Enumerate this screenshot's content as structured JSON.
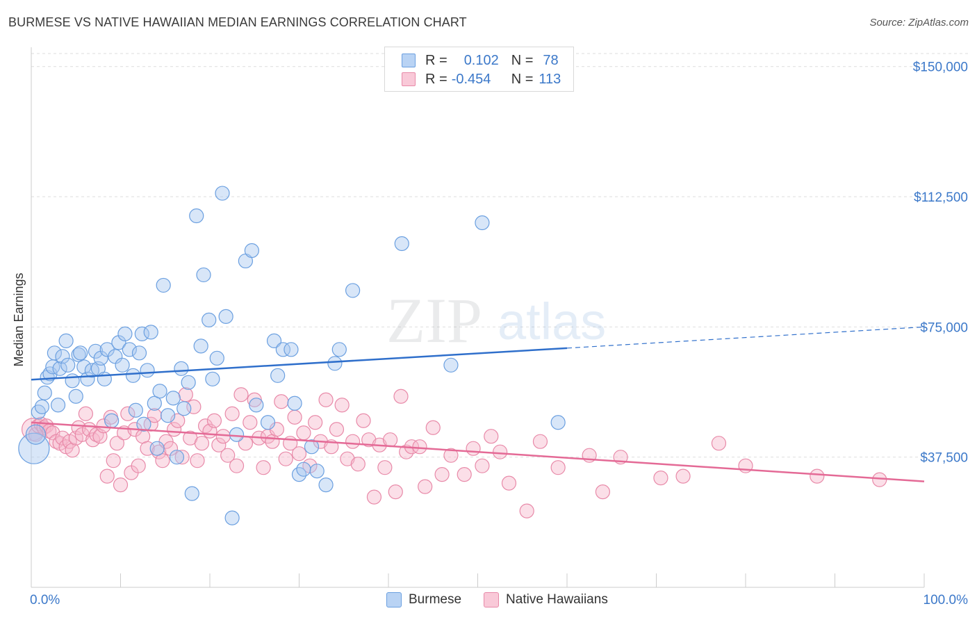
{
  "header": {
    "title": "BURMESE VS NATIVE HAWAIIAN MEDIAN EARNINGS CORRELATION CHART",
    "source": "Source: ZipAtlas.com"
  },
  "watermark": {
    "left": "ZIP",
    "right": "atlas"
  },
  "legend_top": [
    {
      "r_label": "R =",
      "r_value": "0.102",
      "n_label": "N =",
      "n_value": "78"
    },
    {
      "r_label": "R =",
      "r_value": "-0.454",
      "n_label": "N =",
      "n_value": "113"
    }
  ],
  "legend_bottom": [
    {
      "label": "Burmese"
    },
    {
      "label": "Native Hawaiians"
    }
  ],
  "colors": {
    "burmese_fill": "#a8c8f0",
    "burmese_stroke": "#6a9fe0",
    "burmese_line": "#2f6fcb",
    "hawaiian_fill": "#f7b8cc",
    "hawaiian_stroke": "#e889a8",
    "hawaiian_line": "#e46a96",
    "axis_label": "#3b78c9",
    "grid": "#dddddd"
  },
  "chart_data": {
    "type": "scatter",
    "title": "BURMESE VS NATIVE HAWAIIAN MEDIAN EARNINGS CORRELATION CHART",
    "xlabel": "",
    "ylabel": "Median Earnings",
    "xlim": [
      0,
      100
    ],
    "ylim": [
      0,
      153750
    ],
    "x_tick_labels": [
      "0.0%",
      "100.0%"
    ],
    "y_ticks": [
      37500,
      75000,
      112500,
      150000
    ],
    "y_tick_labels": [
      "$37,500",
      "$75,000",
      "$112,500",
      "$150,000"
    ],
    "grid": true,
    "legend_position": "top-center",
    "series": [
      {
        "name": "Burmese",
        "stats": {
          "R": 0.102,
          "N": 78
        },
        "trend": {
          "x0": 0,
          "y0": 59800,
          "x1": 60,
          "y1": 68900,
          "dashed_to_x": 100,
          "dashed_to_y": 75000
        },
        "points": [
          [
            0.3,
            40000,
            22
          ],
          [
            0.5,
            44000,
            14
          ],
          [
            0.8,
            50500,
            10
          ],
          [
            1.2,
            52000,
            10
          ],
          [
            1.5,
            56000,
            10
          ],
          [
            1.8,
            60500,
            10
          ],
          [
            2.1,
            61500,
            10
          ],
          [
            2.4,
            63500,
            10
          ],
          [
            2.6,
            67500,
            10
          ],
          [
            3.0,
            52500,
            10
          ],
          [
            3.2,
            63000,
            10
          ],
          [
            3.5,
            66500,
            10
          ],
          [
            3.9,
            71000,
            10
          ],
          [
            4.1,
            64000,
            10
          ],
          [
            4.6,
            59500,
            10
          ],
          [
            5.0,
            55000,
            10
          ],
          [
            5.3,
            67000,
            10
          ],
          [
            5.5,
            67500,
            10
          ],
          [
            5.9,
            63500,
            10
          ],
          [
            6.3,
            60000,
            10
          ],
          [
            6.8,
            62500,
            10
          ],
          [
            7.2,
            68000,
            10
          ],
          [
            7.5,
            63000,
            10
          ],
          [
            7.8,
            66000,
            10
          ],
          [
            8.2,
            60000,
            10
          ],
          [
            8.5,
            68500,
            10
          ],
          [
            9.0,
            48000,
            10
          ],
          [
            9.4,
            66500,
            10
          ],
          [
            9.8,
            70500,
            10
          ],
          [
            10.2,
            64000,
            10
          ],
          [
            10.5,
            73000,
            10
          ],
          [
            11.0,
            68500,
            10
          ],
          [
            11.4,
            61000,
            10
          ],
          [
            11.7,
            51000,
            10
          ],
          [
            12.1,
            67500,
            10
          ],
          [
            12.4,
            73000,
            10
          ],
          [
            12.6,
            47000,
            10
          ],
          [
            13.0,
            62500,
            10
          ],
          [
            13.4,
            73500,
            10
          ],
          [
            13.8,
            53000,
            10
          ],
          [
            14.1,
            40000,
            10
          ],
          [
            14.4,
            56500,
            10
          ],
          [
            14.8,
            87000,
            10
          ],
          [
            15.3,
            49500,
            10
          ],
          [
            15.9,
            54500,
            10
          ],
          [
            16.3,
            37500,
            10
          ],
          [
            16.8,
            63000,
            10
          ],
          [
            17.1,
            51500,
            10
          ],
          [
            17.6,
            59000,
            10
          ],
          [
            18.0,
            27000,
            10
          ],
          [
            18.5,
            107000,
            10
          ],
          [
            19.0,
            69500,
            10
          ],
          [
            19.3,
            90000,
            10
          ],
          [
            19.9,
            77000,
            10
          ],
          [
            20.3,
            60000,
            10
          ],
          [
            20.8,
            66000,
            10
          ],
          [
            21.4,
            113500,
            10
          ],
          [
            21.8,
            78000,
            10
          ],
          [
            22.5,
            20000,
            10
          ],
          [
            23.0,
            44000,
            10
          ],
          [
            24.0,
            94000,
            10
          ],
          [
            24.7,
            97000,
            10
          ],
          [
            25.2,
            52500,
            10
          ],
          [
            26.5,
            47500,
            10
          ],
          [
            27.2,
            71000,
            10
          ],
          [
            27.6,
            61000,
            10
          ],
          [
            28.2,
            68500,
            10
          ],
          [
            29.1,
            68500,
            10
          ],
          [
            29.5,
            53000,
            10
          ],
          [
            30.0,
            32500,
            10
          ],
          [
            30.5,
            34000,
            10
          ],
          [
            31.4,
            40500,
            10
          ],
          [
            32.0,
            33500,
            10
          ],
          [
            33.0,
            29500,
            10
          ],
          [
            34.0,
            64500,
            10
          ],
          [
            34.5,
            68500,
            10
          ],
          [
            36.0,
            85500,
            10
          ],
          [
            41.5,
            99000,
            10
          ],
          [
            47.0,
            64000,
            10
          ],
          [
            50.5,
            105000,
            10
          ],
          [
            59.0,
            47500,
            10
          ]
        ]
      },
      {
        "name": "Native Hawaiians",
        "stats": {
          "R": -0.454,
          "N": 113
        },
        "trend": {
          "x0": 0,
          "y0": 47500,
          "x1": 100,
          "y1": 30500
        },
        "points": [
          [
            0.2,
            45500,
            16
          ],
          [
            0.5,
            44000,
            10
          ],
          [
            0.8,
            46500,
            10
          ],
          [
            1.1,
            47000,
            10
          ],
          [
            1.4,
            46000,
            10
          ],
          [
            1.7,
            46500,
            10
          ],
          [
            2.0,
            45000,
            10
          ],
          [
            2.4,
            44500,
            10
          ],
          [
            2.8,
            42000,
            10
          ],
          [
            3.2,
            41500,
            10
          ],
          [
            3.5,
            43000,
            10
          ],
          [
            3.9,
            40500,
            10
          ],
          [
            4.3,
            42000,
            10
          ],
          [
            4.6,
            39500,
            10
          ],
          [
            5.0,
            43000,
            10
          ],
          [
            5.3,
            46000,
            10
          ],
          [
            5.7,
            44000,
            10
          ],
          [
            6.1,
            50000,
            10
          ],
          [
            6.5,
            45500,
            10
          ],
          [
            6.9,
            42500,
            10
          ],
          [
            7.3,
            44000,
            10
          ],
          [
            7.7,
            43500,
            10
          ],
          [
            8.1,
            46500,
            10
          ],
          [
            8.5,
            32000,
            10
          ],
          [
            8.9,
            49000,
            10
          ],
          [
            9.2,
            36500,
            10
          ],
          [
            9.6,
            41500,
            10
          ],
          [
            10.0,
            29500,
            10
          ],
          [
            10.4,
            44500,
            10
          ],
          [
            10.8,
            50000,
            10
          ],
          [
            11.2,
            33000,
            10
          ],
          [
            11.6,
            45500,
            10
          ],
          [
            12.0,
            35000,
            10
          ],
          [
            12.5,
            43500,
            10
          ],
          [
            13.0,
            40000,
            10
          ],
          [
            13.4,
            47000,
            10
          ],
          [
            13.8,
            49500,
            10
          ],
          [
            14.3,
            39000,
            10
          ],
          [
            14.7,
            36500,
            10
          ],
          [
            15.1,
            42000,
            10
          ],
          [
            15.6,
            40000,
            10
          ],
          [
            16.0,
            45500,
            10
          ],
          [
            16.4,
            48000,
            10
          ],
          [
            16.9,
            37500,
            10
          ],
          [
            17.3,
            55500,
            10
          ],
          [
            17.8,
            43000,
            10
          ],
          [
            18.2,
            52000,
            10
          ],
          [
            18.6,
            36500,
            10
          ],
          [
            19.1,
            41500,
            10
          ],
          [
            19.5,
            46500,
            10
          ],
          [
            20.0,
            45000,
            10
          ],
          [
            20.5,
            48000,
            10
          ],
          [
            21.0,
            41000,
            10
          ],
          [
            21.5,
            43500,
            10
          ],
          [
            22.0,
            38000,
            10
          ],
          [
            22.5,
            50000,
            10
          ],
          [
            23.0,
            35000,
            10
          ],
          [
            23.5,
            55500,
            10
          ],
          [
            24.0,
            41500,
            10
          ],
          [
            24.5,
            47500,
            10
          ],
          [
            25.0,
            54000,
            10
          ],
          [
            25.5,
            43000,
            10
          ],
          [
            26.0,
            34500,
            10
          ],
          [
            26.5,
            43500,
            10
          ],
          [
            27.0,
            42000,
            10
          ],
          [
            27.5,
            45500,
            10
          ],
          [
            28.0,
            53500,
            10
          ],
          [
            28.5,
            37000,
            10
          ],
          [
            29.0,
            41500,
            10
          ],
          [
            29.5,
            49000,
            10
          ],
          [
            30.0,
            38500,
            10
          ],
          [
            30.5,
            44500,
            10
          ],
          [
            31.2,
            35000,
            10
          ],
          [
            31.8,
            47500,
            10
          ],
          [
            32.4,
            42000,
            10
          ],
          [
            33.0,
            54000,
            10
          ],
          [
            33.6,
            40500,
            10
          ],
          [
            34.2,
            45500,
            10
          ],
          [
            34.8,
            52500,
            10
          ],
          [
            35.4,
            37000,
            10
          ],
          [
            36.0,
            42000,
            10
          ],
          [
            36.6,
            35500,
            10
          ],
          [
            37.2,
            48000,
            10
          ],
          [
            37.8,
            42500,
            10
          ],
          [
            38.4,
            26000,
            10
          ],
          [
            39.0,
            41000,
            10
          ],
          [
            39.6,
            34500,
            10
          ],
          [
            40.2,
            42500,
            10
          ],
          [
            40.8,
            27500,
            10
          ],
          [
            41.4,
            55000,
            10
          ],
          [
            42.0,
            39000,
            10
          ],
          [
            42.6,
            40500,
            10
          ],
          [
            43.5,
            40500,
            10
          ],
          [
            44.1,
            29000,
            10
          ],
          [
            45.0,
            46000,
            10
          ],
          [
            46.0,
            32500,
            10
          ],
          [
            47.0,
            38000,
            10
          ],
          [
            48.5,
            32500,
            10
          ],
          [
            49.5,
            40000,
            10
          ],
          [
            50.5,
            35000,
            10
          ],
          [
            51.5,
            43500,
            10
          ],
          [
            52.5,
            39000,
            10
          ],
          [
            53.5,
            30000,
            10
          ],
          [
            55.5,
            22000,
            10
          ],
          [
            57.0,
            42000,
            10
          ],
          [
            59.0,
            34500,
            10
          ],
          [
            62.5,
            38000,
            10
          ],
          [
            64.0,
            27500,
            10
          ],
          [
            66.0,
            37500,
            10
          ],
          [
            70.5,
            31500,
            10
          ],
          [
            73.0,
            32000,
            10
          ],
          [
            77.0,
            41500,
            10
          ],
          [
            80.0,
            35000,
            10
          ],
          [
            88.0,
            32000,
            10
          ],
          [
            95.0,
            31000,
            10
          ]
        ]
      }
    ]
  }
}
